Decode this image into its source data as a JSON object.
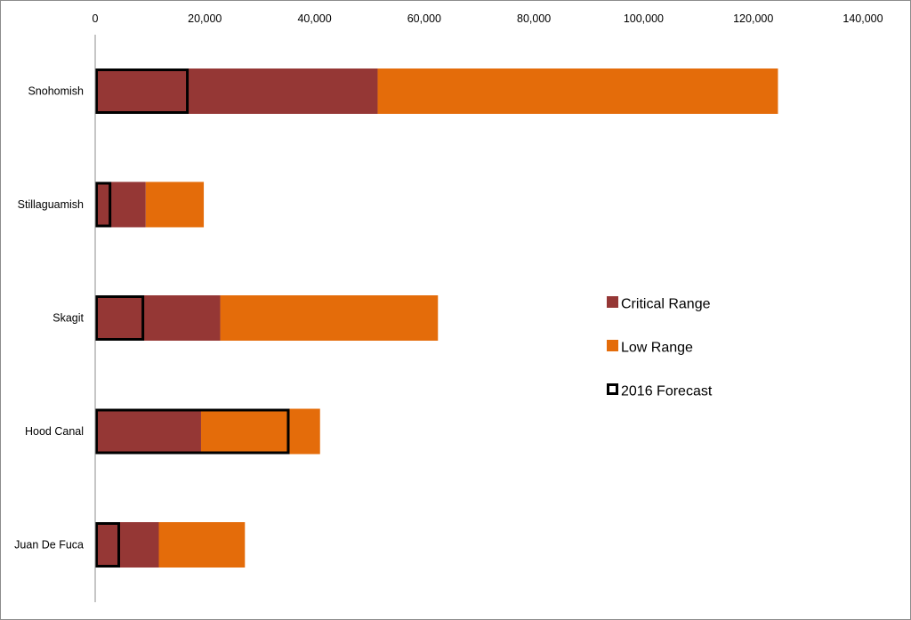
{
  "chart_data": {
    "type": "bar",
    "orientation": "horizontal",
    "categories": [
      "Snohomish",
      "Stillaguamish",
      "Skagit",
      "Hood Canal",
      "Juan De Fuca"
    ],
    "series": [
      {
        "name": "Critical Range",
        "values": [
          51500,
          9200,
          22800,
          19300,
          11600
        ],
        "color": "#953735"
      },
      {
        "name": "Low Range",
        "values": [
          124500,
          19800,
          62500,
          41000,
          27300
        ],
        "color": "#e46c0a"
      },
      {
        "name": "2016 Forecast",
        "values": [
          16800,
          2700,
          8700,
          35200,
          4300
        ],
        "color": "#000000",
        "style": "outline"
      }
    ],
    "x_ticks": [
      "0",
      "20,000",
      "40,000",
      "60,000",
      "80,000",
      "100,000",
      "120,000",
      "140,000"
    ],
    "xlim": [
      0,
      140000
    ],
    "x_axis_position": "top",
    "grid": false,
    "legend_position": "right"
  }
}
